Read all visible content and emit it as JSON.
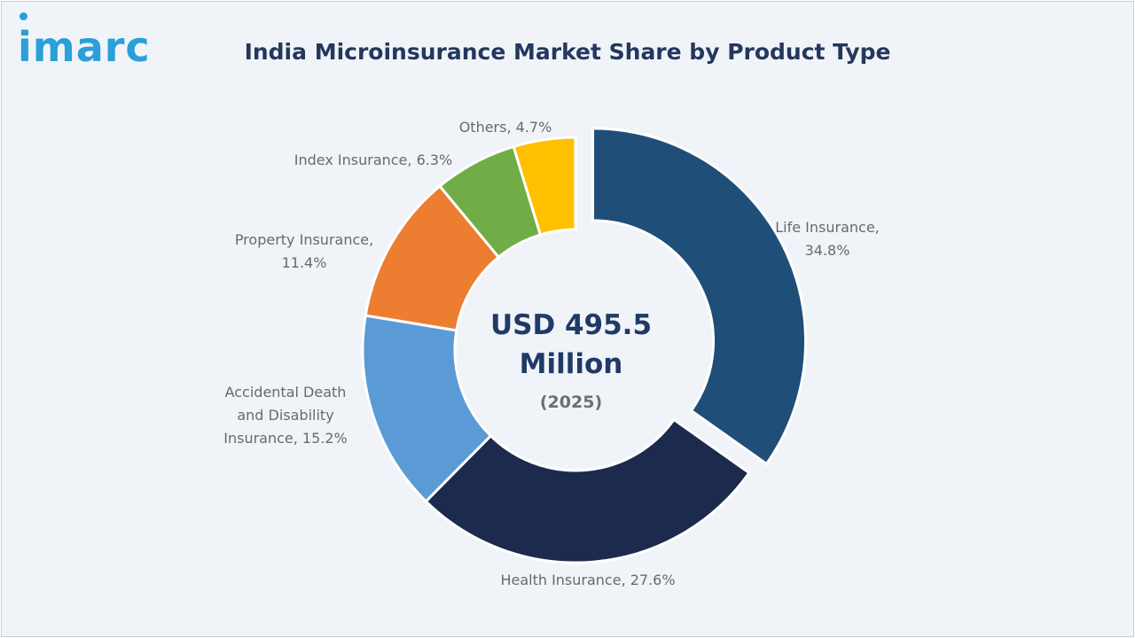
{
  "logo": {
    "text": "imarc"
  },
  "chart_data": {
    "type": "pie",
    "title": "India Microinsurance Market Share by Product Type",
    "unit": "%",
    "center_value": "USD 495.5",
    "center_unit": "Million",
    "center_year": "(2025)",
    "slices": [
      {
        "name": "Life Insurance",
        "value": 34.8,
        "color": "#1f4e79",
        "exploded": true,
        "label_lines": [
          "Life Insurance,",
          "34.8%"
        ]
      },
      {
        "name": "Health Insurance",
        "value": 27.6,
        "color": "#1c2b4d",
        "exploded": false,
        "label_lines": [
          "Health Insurance, 27.6%"
        ]
      },
      {
        "name": "Accidental Death and Disability Insurance",
        "value": 15.2,
        "color": "#5b9bd5",
        "exploded": false,
        "label_lines": [
          "Accidental Death",
          "and Disability",
          "Insurance, 15.2%"
        ]
      },
      {
        "name": "Property Insurance",
        "value": 11.4,
        "color": "#ed7d31",
        "exploded": false,
        "label_lines": [
          "Property Insurance,",
          "11.4%"
        ]
      },
      {
        "name": "Index Insurance",
        "value": 6.3,
        "color": "#70ad47",
        "exploded": false,
        "label_lines": [
          "Index Insurance, 6.3%"
        ]
      },
      {
        "name": "Others",
        "value": 4.7,
        "color": "#ffc000",
        "exploded": false,
        "label_lines": [
          "Others, 4.7%"
        ]
      }
    ]
  }
}
